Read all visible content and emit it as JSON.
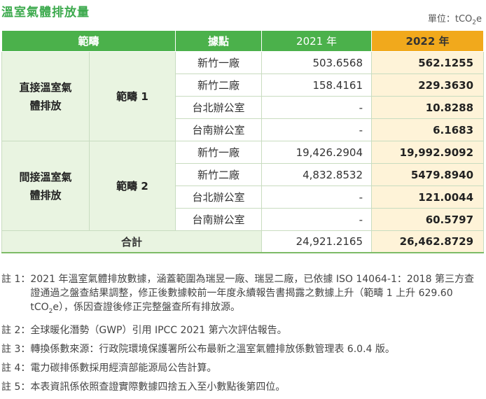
{
  "title": "溫室氣體排放量",
  "unit_prefix": "單位：tCO",
  "unit_sub": "2",
  "unit_suffix": "e",
  "headers": {
    "scope": "範疇",
    "site": "據點",
    "y2021": "2021 年",
    "y2022": "2022 年"
  },
  "groups": [
    {
      "name": "直接溫室氣體排放",
      "scope": "範疇 1",
      "rows": [
        {
          "site": "新竹一廠",
          "v2021": "503.6568",
          "v2022": "562.1255"
        },
        {
          "site": "新竹二廠",
          "v2021": "158.4161",
          "v2022": "229.3630"
        },
        {
          "site": "台北辦公室",
          "v2021": "-",
          "v2022": "10.8288"
        },
        {
          "site": "台南辦公室",
          "v2021": "-",
          "v2022": "6.1683"
        }
      ]
    },
    {
      "name": "間接溫室氣體排放",
      "scope": "範疇 2",
      "rows": [
        {
          "site": "新竹一廠",
          "v2021": "19,426.2904",
          "v2022": "19,992.9092"
        },
        {
          "site": "新竹二廠",
          "v2021": "4,832.8532",
          "v2022": "5479.8940"
        },
        {
          "site": "台北辦公室",
          "v2021": "-",
          "v2022": "121.0044"
        },
        {
          "site": "台南辦公室",
          "v2021": "-",
          "v2022": "60.5797"
        }
      ]
    }
  ],
  "total": {
    "label": "合計",
    "v2021": "24,921.2165",
    "v2022": "26,462.8729"
  },
  "notes": [
    {
      "label": "註 1：",
      "pre": "2021 年溫室氣體排放數據，涵蓋範圍為瑞昱一廠、瑞昱二廠，已依據 ISO 14064-1：2018 第三方查證通過之盤查結果調整，修正後數據較前一年度永續報告書揭露之數據上升（範疇 1 上升 629.60 tCO",
      "sub": "2",
      "post": "e），係因查證後修正完整盤查所有排放源。"
    },
    {
      "label": "註 2：",
      "pre": "全球暖化潛勢（GWP）引用 IPCC 2021 第六次評估報告。",
      "sub": "",
      "post": ""
    },
    {
      "label": "註 3：",
      "pre": "轉換係數來源：行政院環境保護署所公布最新之溫室氣體排放係數管理表 6.0.4 版。",
      "sub": "",
      "post": ""
    },
    {
      "label": "註 4：",
      "pre": "電力碳排係數採用經濟部能源局公告計算。",
      "sub": "",
      "post": ""
    },
    {
      "label": "註 5：",
      "pre": "本表資訊係依照查證實際數據四捨五入至小數點後第四位。",
      "sub": "",
      "post": ""
    }
  ]
}
